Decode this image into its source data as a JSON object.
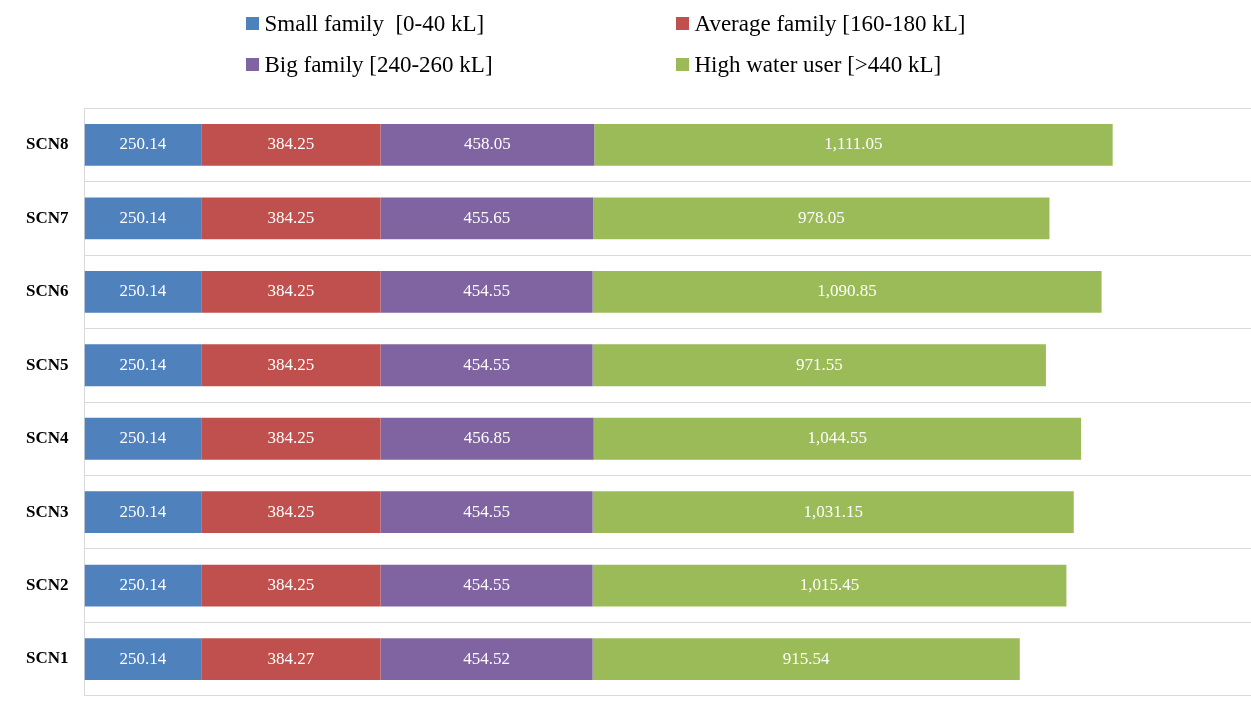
{
  "chart_data": {
    "type": "bar",
    "orientation": "horizontal",
    "stacked": true,
    "categories": [
      "SCN8",
      "SCN7",
      "SCN6",
      "SCN5",
      "SCN4",
      "SCN3",
      "SCN2",
      "SCN1"
    ],
    "series": [
      {
        "name": "Small family  [0-40 kL]",
        "color": "#4f81bd",
        "values": [
          250.14,
          250.14,
          250.14,
          250.14,
          250.14,
          250.14,
          250.14,
          250.14
        ],
        "value_labels": [
          "250.14",
          "250.14",
          "250.14",
          "250.14",
          "250.14",
          "250.14",
          "250.14",
          "250.14"
        ]
      },
      {
        "name": "Average family [160-180 kL]",
        "color": "#c0504d",
        "values": [
          384.25,
          384.25,
          384.25,
          384.25,
          384.25,
          384.25,
          384.25,
          384.27
        ],
        "value_labels": [
          "384.25",
          "384.25",
          "384.25",
          "384.25",
          "384.25",
          "384.25",
          "384.25",
          "384.27"
        ]
      },
      {
        "name": "Big family [240-260 kL]",
        "color": "#8064a2",
        "values": [
          458.05,
          455.65,
          454.55,
          454.55,
          456.85,
          454.55,
          454.55,
          454.52
        ],
        "value_labels": [
          "458.05",
          "455.65",
          "454.55",
          "454.55",
          "456.85",
          "454.55",
          "454.55",
          "454.52"
        ]
      },
      {
        "name": "High water user [>440 kL]",
        "color": "#9bbb59",
        "values": [
          1111.05,
          978.05,
          1090.85,
          971.55,
          1044.55,
          1031.15,
          1015.45,
          915.54
        ],
        "value_labels": [
          "1,111.05",
          "978.05",
          "1,090.85",
          "971.55",
          "1,044.55",
          "1,031.15",
          "1,015.45",
          "915.54"
        ]
      }
    ],
    "tick_labels": "y",
    "grid": "y",
    "legend": "top"
  }
}
